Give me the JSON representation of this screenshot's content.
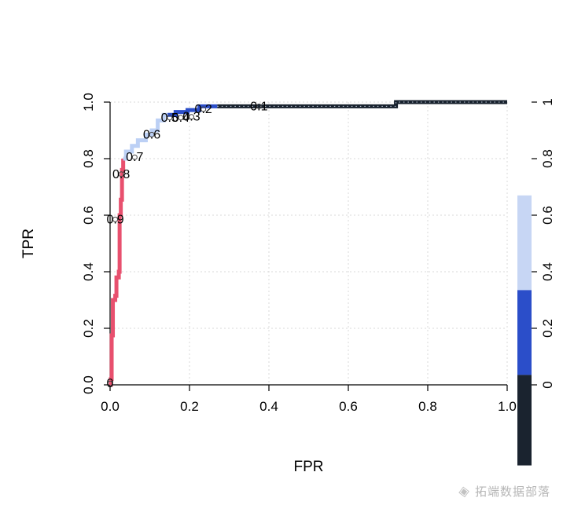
{
  "watermark": {
    "logo_glyph": "◈",
    "text": "拓端数据部落"
  },
  "chart_data": {
    "type": "line",
    "title": "",
    "xlabel": "FPR",
    "ylabel": "TPR",
    "xlim": [
      0,
      1
    ],
    "ylim": [
      0,
      1
    ],
    "grid": true,
    "x_ticks": [
      {
        "v": 0,
        "label": "0.0"
      },
      {
        "v": 0.2,
        "label": "0.2"
      },
      {
        "v": 0.4,
        "label": "0.4"
      },
      {
        "v": 0.6,
        "label": "0.6"
      },
      {
        "v": 0.8,
        "label": "0.8"
      },
      {
        "v": 1,
        "label": "1.0"
      }
    ],
    "y_ticks": [
      {
        "v": 0,
        "label": "0.0"
      },
      {
        "v": 0.2,
        "label": "0.2"
      },
      {
        "v": 0.4,
        "label": "0.4"
      },
      {
        "v": 0.6,
        "label": "0.6"
      },
      {
        "v": 0.8,
        "label": "0.8"
      },
      {
        "v": 1,
        "label": "1.0"
      }
    ],
    "series": [
      {
        "name": "roc-high-threshold-red",
        "color": "#e8506e",
        "width": 5,
        "points": [
          [
            0,
            0
          ],
          [
            0.002,
            0
          ],
          [
            0.002,
            0.02
          ],
          [
            0.004,
            0.02
          ],
          [
            0.004,
            0.175
          ],
          [
            0.007,
            0.175
          ],
          [
            0.007,
            0.3
          ],
          [
            0.013,
            0.3
          ],
          [
            0.013,
            0.315
          ],
          [
            0.016,
            0.315
          ],
          [
            0.016,
            0.38
          ],
          [
            0.022,
            0.38
          ],
          [
            0.022,
            0.4
          ],
          [
            0.024,
            0.4
          ],
          [
            0.024,
            0.6
          ],
          [
            0.027,
            0.6
          ],
          [
            0.027,
            0.655
          ],
          [
            0.03,
            0.655
          ],
          [
            0.03,
            0.76
          ],
          [
            0.033,
            0.76
          ],
          [
            0.033,
            0.8
          ]
        ]
      },
      {
        "name": "roc-mid-threshold-lightblue",
        "color": "#bcd0f5",
        "width": 5,
        "points": [
          [
            0.033,
            0.8
          ],
          [
            0.04,
            0.8
          ],
          [
            0.04,
            0.825
          ],
          [
            0.055,
            0.825
          ],
          [
            0.055,
            0.845
          ],
          [
            0.07,
            0.845
          ],
          [
            0.07,
            0.865
          ],
          [
            0.09,
            0.865
          ],
          [
            0.09,
            0.885
          ],
          [
            0.105,
            0.885
          ],
          [
            0.105,
            0.9
          ],
          [
            0.12,
            0.9
          ],
          [
            0.12,
            0.935
          ],
          [
            0.135,
            0.935
          ],
          [
            0.135,
            0.955
          ],
          [
            0.145,
            0.955
          ]
        ]
      },
      {
        "name": "roc-mid-threshold-blue",
        "color": "#2b4ec9",
        "width": 5,
        "points": [
          [
            0.145,
            0.955
          ],
          [
            0.165,
            0.955
          ],
          [
            0.165,
            0.965
          ],
          [
            0.195,
            0.965
          ],
          [
            0.195,
            0.972
          ],
          [
            0.225,
            0.972
          ],
          [
            0.225,
            0.985
          ],
          [
            0.27,
            0.985
          ]
        ]
      },
      {
        "name": "roc-low-threshold-navy",
        "color": "#18222e",
        "width": 5,
        "dotted_overlay": true,
        "points": [
          [
            0.27,
            0.985
          ],
          [
            0.72,
            0.985
          ],
          [
            0.72,
            1.0
          ],
          [
            1.0,
            1.0
          ]
        ]
      }
    ],
    "threshold_labels": [
      {
        "text": "0.9",
        "x": 0.013,
        "y": 0.585
      },
      {
        "text": "0.8",
        "x": 0.028,
        "y": 0.745
      },
      {
        "text": "0.7",
        "x": 0.062,
        "y": 0.805
      },
      {
        "text": "0.6",
        "x": 0.105,
        "y": 0.885
      },
      {
        "text": "0.5",
        "x": 0.15,
        "y": 0.945
      },
      {
        "text": "0.4",
        "x": 0.178,
        "y": 0.945
      },
      {
        "text": "0.3",
        "x": 0.205,
        "y": 0.948
      },
      {
        "text": "0.2",
        "x": 0.235,
        "y": 0.975
      },
      {
        "text": "0.1",
        "x": 0.375,
        "y": 0.985
      },
      {
        "text": "0",
        "x": 0.0,
        "y": 0.005
      }
    ],
    "colorbar": {
      "ticks": [
        {
          "v": 0,
          "label": "0"
        },
        {
          "v": 0.2,
          "label": "0.2"
        },
        {
          "v": 0.4,
          "label": "0.4"
        },
        {
          "v": 0.6,
          "label": "0.6"
        },
        {
          "v": 0.8,
          "label": "0.8"
        },
        {
          "v": 1,
          "label": "1"
        }
      ],
      "segments": [
        {
          "color": "#c7d6f4",
          "from": 0.335,
          "to": 0.67
        },
        {
          "color": "#2b4ec9",
          "from": 0.035,
          "to": 0.335
        },
        {
          "color": "#1a232f",
          "from": -0.285,
          "to": 0.035
        }
      ]
    }
  }
}
